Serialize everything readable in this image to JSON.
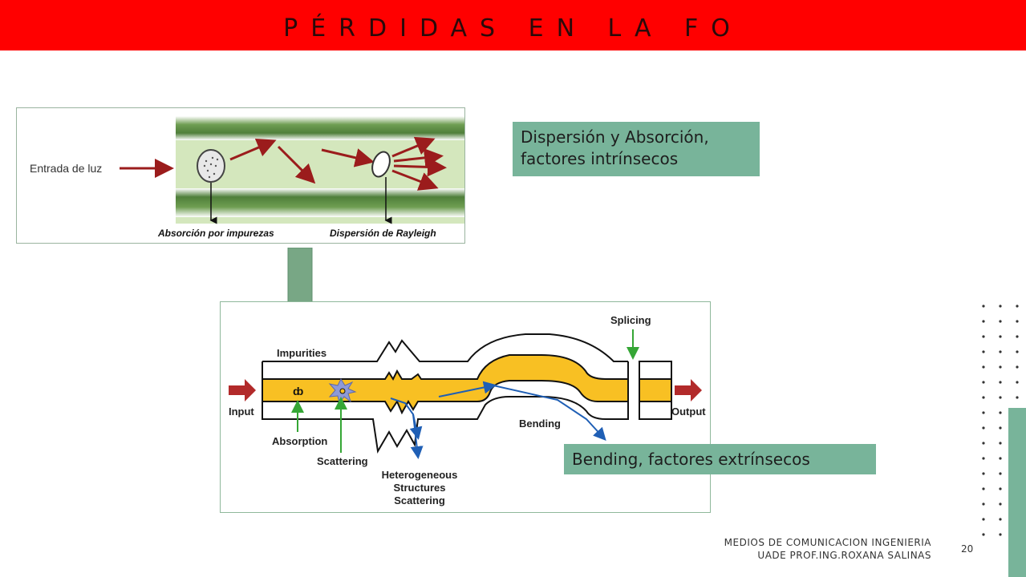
{
  "slide": {
    "title": "PÉRDIDAS EN LA FO",
    "page_number": "20",
    "footer_line1": "MEDIOS DE COMUNICACION      INGENIERIA",
    "footer_line2": "UADE      PROF.ING.ROXANA SALINAS"
  },
  "labels": {
    "intrinsic_line1": "Dispersión y Absorción,",
    "intrinsic_line2": "factores intrínsecos",
    "extrinsic": "Bending, factores extrínsecos"
  },
  "figure1": {
    "input_label": "Entrada de luz",
    "absorption_label": "Absorción por impurezas",
    "rayleigh_label": "Dispersión de Rayleigh"
  },
  "figure2": {
    "impurities": "Impurities",
    "input": "Input",
    "output": "Output",
    "absorption": "Absorption",
    "scattering": "Scattering",
    "hetero_line1": "Heterogeneous",
    "hetero_line2": "Structures",
    "hetero_line3": "Scattering",
    "bending": "Bending",
    "splicing": "Splicing"
  },
  "colors": {
    "title_bar": "#ff0000",
    "accent_green": "#78b49a",
    "fiber_core": "#f8c023",
    "arrow_red": "#9b1c1c",
    "ray_blue": "#1f5fb5",
    "pointer_green": "#35a635"
  }
}
